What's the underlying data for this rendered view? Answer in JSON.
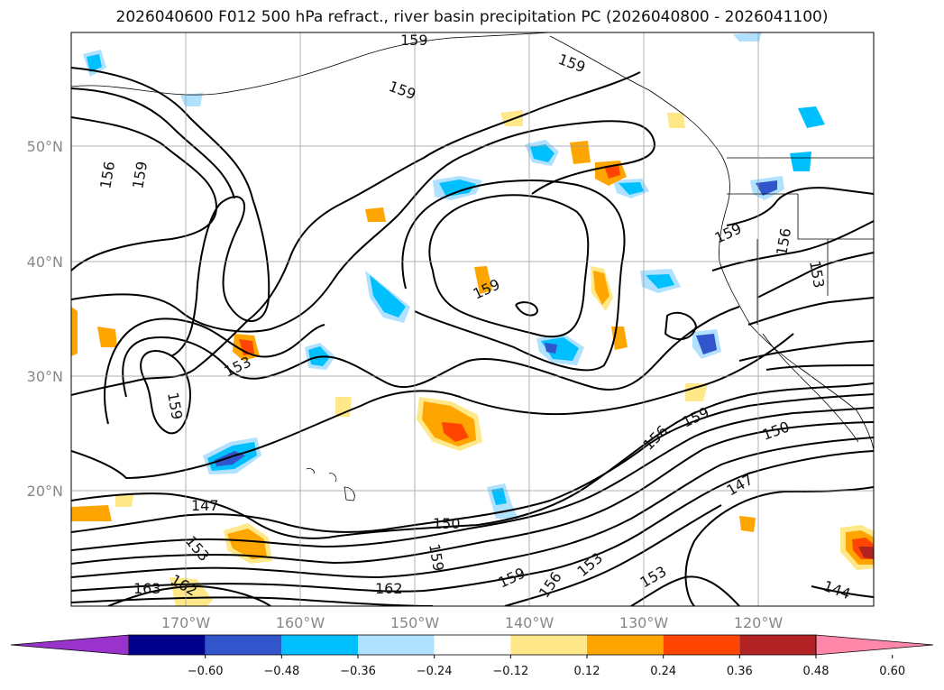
{
  "chart_data": {
    "type": "contour-map",
    "title": "2026040600 F012 500 hPa refract., river basin precipitation PC (2026040800 - 2026041100)",
    "lat_ticks": [
      "50°N",
      "40°N",
      "30°N",
      "20°N"
    ],
    "lon_ticks": [
      "170°W",
      "160°W",
      "150°W",
      "140°W",
      "130°W",
      "120°W"
    ],
    "colorbar": {
      "ticks": [
        "−0.60",
        "−0.48",
        "−0.36",
        "−0.24",
        "−0.12",
        "0.12",
        "0.24",
        "0.36",
        "0.48",
        "0.60"
      ],
      "colors": [
        "#9933cc",
        "#00008b",
        "#3355cc",
        "#00bfff",
        "#b0e2ff",
        "#ffffff",
        "#ffe88a",
        "#ffa500",
        "#ff4500",
        "#b22222",
        "#ff88aa"
      ]
    },
    "contour_labels": [
      "159",
      "159",
      "156",
      "159",
      "159",
      "153",
      "159",
      "147",
      "150",
      "153",
      "159",
      "163",
      "162",
      "162",
      "159",
      "156",
      "153",
      "153",
      "156",
      "159",
      "150",
      "147",
      "159",
      "156",
      "153",
      "144",
      "159"
    ]
  },
  "colors": {
    "contour": "#000000",
    "grid": "#999999",
    "coast": "#000000",
    "label_gray": "#888888"
  }
}
